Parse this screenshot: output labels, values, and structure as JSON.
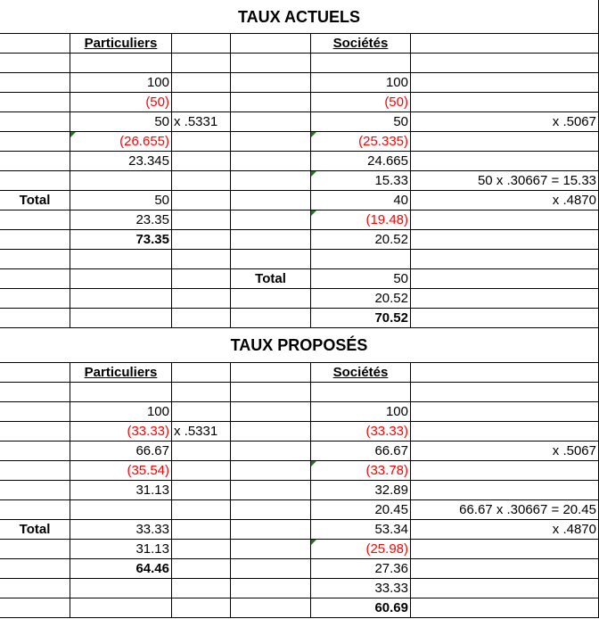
{
  "sections": [
    {
      "title": "TAUX ACTUELS",
      "rows": [
        [
          "",
          "Particuliers",
          "",
          "",
          "Sociétés",
          ""
        ],
        [
          "",
          "",
          "",
          "",
          "",
          ""
        ],
        [
          "",
          "100",
          "",
          "",
          "100",
          ""
        ],
        [
          "",
          "(50)",
          "",
          "",
          "(50)",
          ""
        ],
        [
          "",
          "50",
          "x .5331",
          "",
          "50",
          "x .5067"
        ],
        [
          "",
          "(26.655)",
          "",
          "",
          "(25.335)",
          ""
        ],
        [
          "",
          "23.345",
          "",
          "",
          "24.665",
          ""
        ],
        [
          "",
          "",
          "",
          "",
          "15.33",
          "50 x .30667 = 15.33"
        ],
        [
          "Total",
          "50",
          "",
          "",
          "40",
          "x .4870"
        ],
        [
          "",
          "23.35",
          "",
          "",
          "(19.48)",
          ""
        ],
        [
          "",
          "73.35",
          "",
          "",
          "20.52",
          ""
        ],
        [
          "",
          "",
          "",
          "",
          "",
          ""
        ],
        [
          "",
          "",
          "",
          "Total",
          "50",
          ""
        ],
        [
          "",
          "",
          "",
          "",
          "20.52",
          ""
        ],
        [
          "",
          "",
          "",
          "",
          "70.52",
          ""
        ]
      ]
    },
    {
      "title": "TAUX PROPOSÉS",
      "rows": [
        [
          "",
          "Particuliers",
          "",
          "",
          "Sociétés",
          ""
        ],
        [
          "",
          "",
          "",
          "",
          "",
          ""
        ],
        [
          "",
          "100",
          "",
          "",
          "100",
          ""
        ],
        [
          "",
          "(33.33)",
          "x .5331",
          "",
          "(33.33)",
          ""
        ],
        [
          "",
          "66.67",
          "",
          "",
          "66.67",
          "x .5067"
        ],
        [
          "",
          "(35.54)",
          "",
          "",
          "(33.78)",
          ""
        ],
        [
          "",
          "31.13",
          "",
          "",
          "32.89",
          ""
        ],
        [
          "",
          "",
          "",
          "",
          "20.45",
          "66.67 x .30667 = 20.45"
        ],
        [
          "Total",
          "33.33",
          "",
          "",
          "53.34",
          "x .4870"
        ],
        [
          "",
          "31.13",
          "",
          "",
          "(25.98)",
          ""
        ],
        [
          "",
          "64.46",
          "",
          "",
          "27.36",
          ""
        ],
        [
          "",
          "",
          "",
          "",
          "33.33",
          ""
        ],
        [
          "",
          "",
          "",
          "",
          "60.69",
          ""
        ]
      ]
    }
  ],
  "colors": {
    "negative": "#ff0000",
    "note_marker": "#1a7a1a"
  }
}
